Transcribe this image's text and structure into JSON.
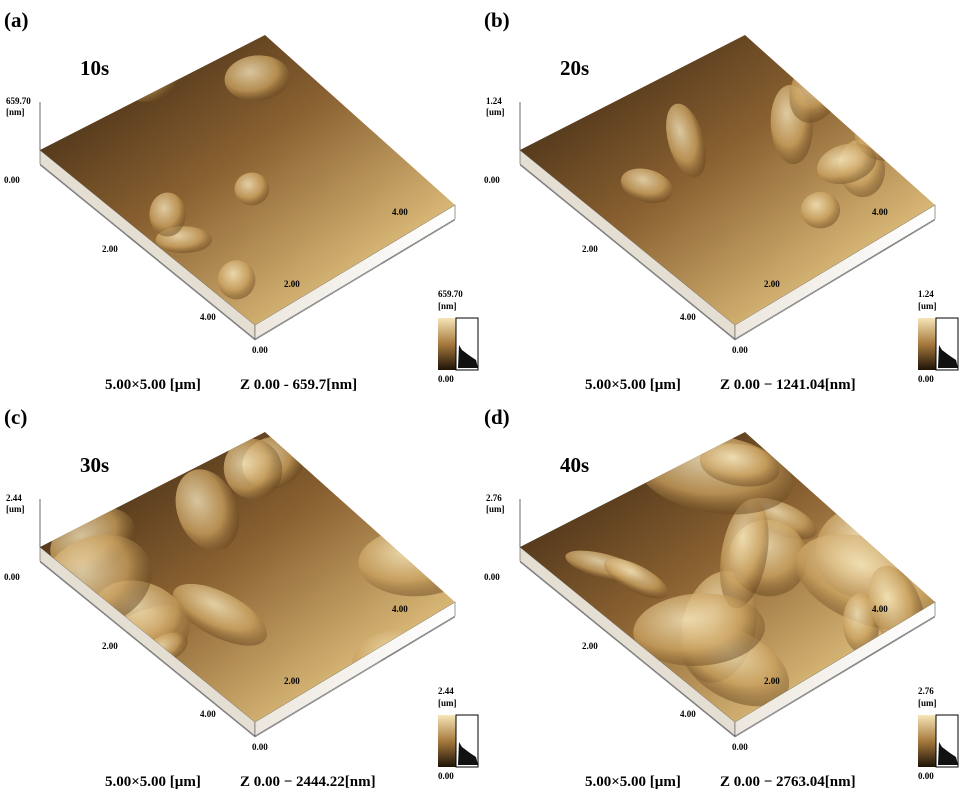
{
  "panels": [
    {
      "label": "(a)",
      "time": "10s",
      "z_max": "659.70",
      "z_unit": "[nm]",
      "z_min": "0.00",
      "y_ticks": [
        "2.00",
        "4.00"
      ],
      "x_ticks": [
        "2.00",
        "4.00"
      ],
      "origin": "0.00",
      "colorbar": {
        "max": "659.70",
        "unit": "[nm]",
        "min": "0.00"
      },
      "scan_size": "5.00×5.00 [µm]",
      "z_range": "Z 0.00 - 659.7[nm]"
    },
    {
      "label": "(b)",
      "time": "20s",
      "z_max": "1.24",
      "z_unit": "[um]",
      "z_min": "0.00",
      "y_ticks": [
        "2.00",
        "4.00"
      ],
      "x_ticks": [
        "2.00",
        "4.00"
      ],
      "origin": "0.00",
      "colorbar": {
        "max": "1.24",
        "unit": "[um]",
        "min": "0.00"
      },
      "scan_size": "5.00×5.00 [µm]",
      "z_range": "Z 0.00 − 1241.04[nm]"
    },
    {
      "label": "(c)",
      "time": "30s",
      "z_max": "2.44",
      "z_unit": "[um]",
      "z_min": "0.00",
      "y_ticks": [
        "2.00",
        "4.00"
      ],
      "x_ticks": [
        "2.00",
        "4.00"
      ],
      "origin": "0.00",
      "colorbar": {
        "max": "2.44",
        "unit": "[um]",
        "min": "0.00"
      },
      "scan_size": "5.00×5.00 [µm]",
      "z_range": "Z 0.00 − 2444.22[nm]"
    },
    {
      "label": "(d)",
      "time": "40s",
      "z_max": "2.76",
      "z_unit": "[um]",
      "z_min": "0.00",
      "y_ticks": [
        "2.00",
        "4.00"
      ],
      "x_ticks": [
        "2.00",
        "4.00"
      ],
      "origin": "0.00",
      "colorbar": {
        "max": "2.76",
        "unit": "[um]",
        "min": "0.00"
      },
      "scan_size": "5.00×5.00 [µm]",
      "z_range": "Z 0.00 − 2763.04[nm]"
    }
  ]
}
